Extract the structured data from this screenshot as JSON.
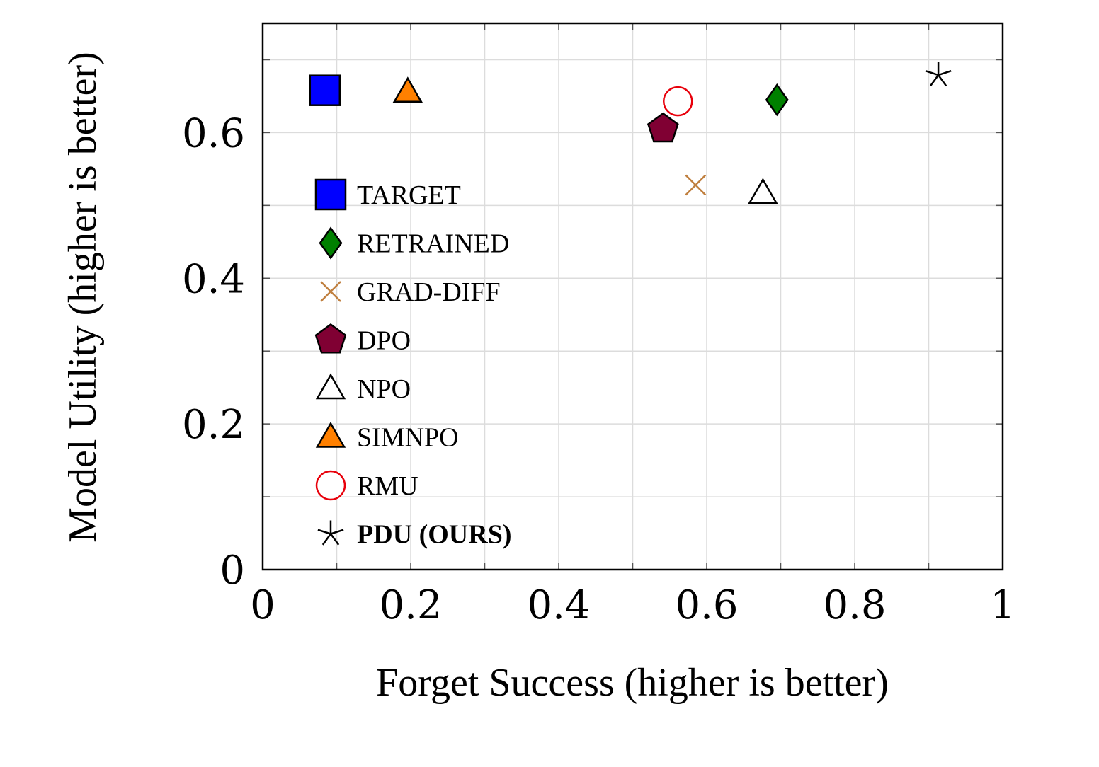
{
  "chart_data": {
    "type": "scatter",
    "xlabel": "Forget Success (higher is better)",
    "ylabel": "Model Utility (higher is better)",
    "xlim": [
      0,
      1
    ],
    "ylim": [
      0,
      0.75
    ],
    "x_ticks": [
      0,
      0.2,
      0.4,
      0.6,
      0.8,
      1
    ],
    "x_tick_labels": [
      "0",
      "0.2",
      "0.4",
      "0.6",
      "0.8",
      "1"
    ],
    "y_ticks": [
      0,
      0.2,
      0.4,
      0.6
    ],
    "y_tick_labels": [
      "0",
      "0.2",
      "0.4",
      "0.6"
    ],
    "x_minor_grid": [
      0.1,
      0.3,
      0.5,
      0.7,
      0.9
    ],
    "y_minor_grid": [
      0.1,
      0.3,
      0.5,
      0.7
    ],
    "grid": true,
    "legend_position": "left-inside",
    "series": [
      {
        "name": "TARGET",
        "marker": "square",
        "color": "#0000ff",
        "stroke": "#000000",
        "x": 0.084,
        "y": 0.658,
        "bold": false
      },
      {
        "name": "RETRAINED",
        "marker": "diamond",
        "color": "#008000",
        "stroke": "#000000",
        "x": 0.695,
        "y": 0.645,
        "bold": false
      },
      {
        "name": "GRAD-DIFF",
        "marker": "cross",
        "color": "#c08040",
        "stroke": "#c08040",
        "x": 0.585,
        "y": 0.528,
        "bold": false
      },
      {
        "name": "DPO",
        "marker": "pentagon",
        "color": "#800033",
        "stroke": "#000000",
        "x": 0.541,
        "y": 0.605,
        "bold": false
      },
      {
        "name": "NPO",
        "marker": "triangle-open",
        "color": "#ffffff",
        "stroke": "#000000",
        "x": 0.676,
        "y": 0.517,
        "bold": false
      },
      {
        "name": "SIMNPO",
        "marker": "triangle",
        "color": "#ff8000",
        "stroke": "#000000",
        "x": 0.196,
        "y": 0.656,
        "bold": false
      },
      {
        "name": "RMU",
        "marker": "circle-open",
        "color": "#ffffff",
        "stroke": "#e8000b",
        "x": 0.561,
        "y": 0.643,
        "bold": false
      },
      {
        "name": "PDU (OURS)",
        "marker": "star",
        "color": "#000000",
        "stroke": "#000000",
        "x": 0.913,
        "y": 0.679,
        "bold": true
      }
    ]
  }
}
